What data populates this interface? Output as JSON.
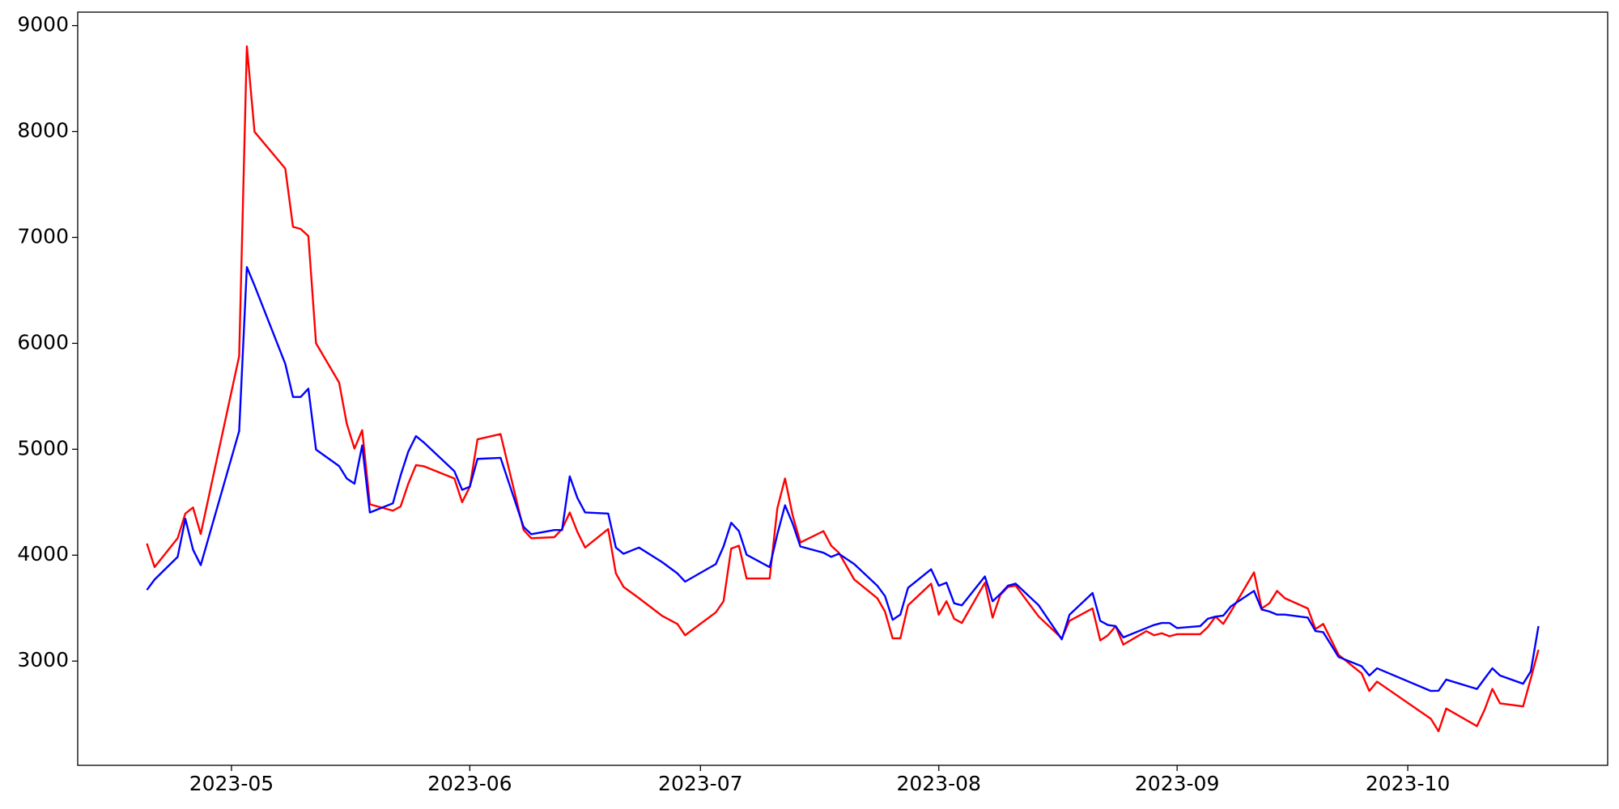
{
  "chart_data": {
    "type": "line",
    "x": [
      "2023-04-20",
      "2023-04-21",
      "2023-04-24",
      "2023-04-25",
      "2023-04-26",
      "2023-04-27",
      "2023-05-02",
      "2023-05-03",
      "2023-05-04",
      "2023-05-08",
      "2023-05-09",
      "2023-05-10",
      "2023-05-11",
      "2023-05-12",
      "2023-05-15",
      "2023-05-16",
      "2023-05-17",
      "2023-05-18",
      "2023-05-19",
      "2023-05-22",
      "2023-05-23",
      "2023-05-24",
      "2023-05-25",
      "2023-05-26",
      "2023-05-30",
      "2023-05-31",
      "2023-06-01",
      "2023-06-02",
      "2023-06-05",
      "2023-06-08",
      "2023-06-09",
      "2023-06-12",
      "2023-06-13",
      "2023-06-14",
      "2023-06-15",
      "2023-06-16",
      "2023-06-19",
      "2023-06-20",
      "2023-06-21",
      "2023-06-23",
      "2023-06-26",
      "2023-06-28",
      "2023-06-29",
      "2023-07-03",
      "2023-07-04",
      "2023-07-05",
      "2023-07-06",
      "2023-07-07",
      "2023-07-10",
      "2023-07-11",
      "2023-07-12",
      "2023-07-13",
      "2023-07-14",
      "2023-07-17",
      "2023-07-18",
      "2023-07-19",
      "2023-07-21",
      "2023-07-24",
      "2023-07-25",
      "2023-07-26",
      "2023-07-27",
      "2023-07-28",
      "2023-07-31",
      "2023-08-01",
      "2023-08-02",
      "2023-08-03",
      "2023-08-04",
      "2023-08-07",
      "2023-08-08",
      "2023-08-09",
      "2023-08-10",
      "2023-08-11",
      "2023-08-14",
      "2023-08-17",
      "2023-08-18",
      "2023-08-21",
      "2023-08-22",
      "2023-08-23",
      "2023-08-24",
      "2023-08-25",
      "2023-08-28",
      "2023-08-29",
      "2023-08-30",
      "2023-08-31",
      "2023-09-01",
      "2023-09-04",
      "2023-09-05",
      "2023-09-06",
      "2023-09-07",
      "2023-09-08",
      "2023-09-11",
      "2023-09-12",
      "2023-09-13",
      "2023-09-14",
      "2023-09-15",
      "2023-09-18",
      "2023-09-19",
      "2023-09-20",
      "2023-09-22",
      "2023-09-25",
      "2023-09-26",
      "2023-09-27",
      "2023-10-04",
      "2023-10-05",
      "2023-10-06",
      "2023-10-10",
      "2023-10-11",
      "2023-10-12",
      "2023-10-13",
      "2023-10-16",
      "2023-10-17",
      "2023-10-18"
    ],
    "series": [
      {
        "color": "#ff0000",
        "values": [
          4110,
          3887,
          4160,
          4393,
          4450,
          4200,
          5880,
          8805,
          7997,
          7650,
          7100,
          7080,
          7013,
          6000,
          5630,
          5240,
          5006,
          5180,
          4480,
          4420,
          4460,
          4675,
          4850,
          4840,
          4724,
          4500,
          4646,
          5094,
          5143,
          4237,
          4160,
          4170,
          4247,
          4403,
          4218,
          4072,
          4247,
          3828,
          3700,
          3594,
          3428,
          3350,
          3244,
          3460,
          3565,
          4062,
          4090,
          3780,
          3780,
          4442,
          4724,
          4373,
          4120,
          4227,
          4090,
          4023,
          3770,
          3594,
          3468,
          3215,
          3215,
          3526,
          3731,
          3438,
          3565,
          3400,
          3360,
          3740,
          3410,
          3624,
          3700,
          3712,
          3420,
          3215,
          3380,
          3497,
          3195,
          3244,
          3330,
          3156,
          3283,
          3244,
          3263,
          3234,
          3254,
          3254,
          3322,
          3420,
          3351,
          3468,
          3838,
          3497,
          3546,
          3663,
          3594,
          3497,
          3302,
          3351,
          3059,
          2883,
          2718,
          2806,
          2455,
          2338,
          2552,
          2386,
          2542,
          2737,
          2601,
          2572,
          2835,
          3107
        ]
      },
      {
        "color": "#0000ff",
        "values": [
          3672,
          3770,
          3984,
          4344,
          4052,
          3906,
          5172,
          6720,
          6546,
          5806,
          5494,
          5494,
          5572,
          4997,
          4841,
          4724,
          4675,
          5036,
          4403,
          4490,
          4753,
          4978,
          5124,
          5065,
          4792,
          4617,
          4646,
          4909,
          4919,
          4266,
          4198,
          4237,
          4237,
          4744,
          4539,
          4403,
          4393,
          4072,
          4013,
          4072,
          3935,
          3828,
          3750,
          3916,
          4082,
          4306,
          4228,
          4004,
          3887,
          4198,
          4471,
          4296,
          4082,
          4023,
          3984,
          4013,
          3916,
          3712,
          3614,
          3390,
          3439,
          3692,
          3867,
          3712,
          3740,
          3546,
          3526,
          3799,
          3565,
          3633,
          3712,
          3731,
          3526,
          3205,
          3438,
          3643,
          3380,
          3341,
          3330,
          3224,
          3312,
          3341,
          3360,
          3360,
          3312,
          3330,
          3400,
          3420,
          3429,
          3517,
          3663,
          3487,
          3468,
          3439,
          3439,
          3410,
          3283,
          3273,
          3039,
          2952,
          2864,
          2932,
          2718,
          2720,
          2825,
          2737,
          2835,
          2932,
          2864,
          2786,
          2903,
          3330
        ]
      }
    ],
    "xlim": [
      "2023-04-11",
      "2023-10-27"
    ],
    "xticks": [
      {
        "value": "2023-05-01",
        "label": "2023-05"
      },
      {
        "value": "2023-06-01",
        "label": "2023-06"
      },
      {
        "value": "2023-07-01",
        "label": "2023-07"
      },
      {
        "value": "2023-08-01",
        "label": "2023-08"
      },
      {
        "value": "2023-09-01",
        "label": "2023-09"
      },
      {
        "value": "2023-10-01",
        "label": "2023-10"
      }
    ],
    "ylim": [
      2016,
      9127
    ],
    "yticks": [
      3000,
      4000,
      5000,
      6000,
      7000,
      8000,
      9000
    ],
    "grid": false
  }
}
